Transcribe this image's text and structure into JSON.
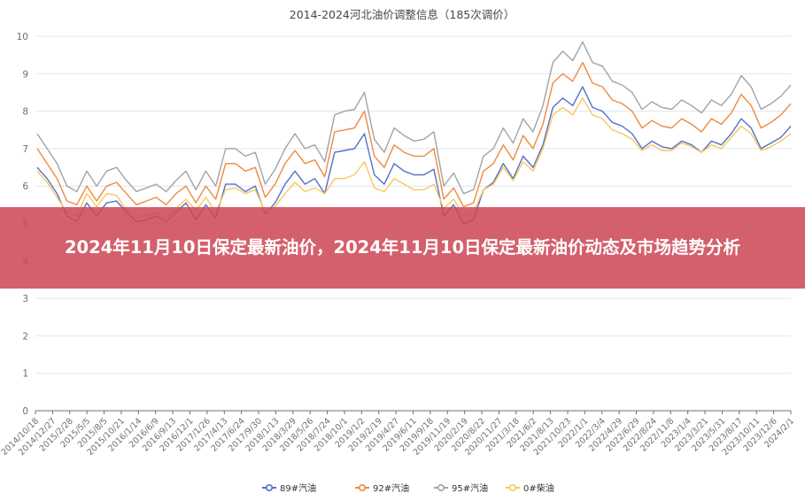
{
  "banner": {
    "headline": "2024年11月10日保定最新油价，2024年11月10日保定最新油价动态及市场趋势分析"
  },
  "chart_data": {
    "type": "line",
    "title": "2014-2024河北油价调整信息（185次调价）",
    "xlabel": "",
    "ylabel": "",
    "ylim": [
      0,
      10
    ],
    "yticks": [
      0,
      1,
      2,
      3,
      4,
      5,
      6,
      7,
      8,
      9,
      10
    ],
    "grid": true,
    "legend_position": "bottom",
    "x_tick_labels": [
      "2014/10/18",
      "2014/12/27",
      "2015/2/28",
      "2015/5/5",
      "2015/8/5",
      "2015/10/21",
      "2016/1/14",
      "2016/6/9",
      "2016/9/13",
      "2016/12/1",
      "2017/1/26",
      "2017/4/13",
      "2017/6/24",
      "2017/9/30",
      "2018/1/13",
      "2018/3/29",
      "2018/5/26",
      "2018/7/24",
      "2018/10/1",
      "2019/1/2",
      "2019/2/19",
      "2019/4/27",
      "2019/6/11",
      "2019/9/18",
      "2019/11/19",
      "2020/2/19",
      "2020/8/22",
      "2020/11/27",
      "2021/3/18",
      "2021/6/2",
      "2021/8/13",
      "2021/10/23",
      "2022/1/1",
      "2022/3/4",
      "2022/4/29",
      "2022/6/29",
      "2022/8/24",
      "2022/11/8",
      "2023/1/4",
      "2023/3/21",
      "2023/5/31",
      "2023/8/17",
      "2023/10/11",
      "2023/12/6",
      "2024/2/1"
    ],
    "series": [
      {
        "name": "89#汽油",
        "color": "#5470c6",
        "values": [
          6.5,
          6.2,
          5.8,
          5.2,
          5.05,
          5.55,
          5.2,
          5.55,
          5.6,
          5.3,
          5.05,
          5.1,
          5.2,
          5.05,
          5.3,
          5.55,
          5.1,
          5.5,
          5.15,
          6.05,
          6.05,
          5.85,
          6.0,
          5.25,
          5.55,
          6.05,
          6.4,
          6.05,
          6.2,
          5.8,
          6.9,
          6.95,
          7.0,
          7.4,
          6.3,
          6.05,
          6.6,
          6.4,
          6.3,
          6.3,
          6.45,
          5.2,
          5.5,
          5.0,
          5.1,
          5.9,
          6.1,
          6.6,
          6.2,
          6.8,
          6.5,
          7.1,
          8.1,
          8.35,
          8.15,
          8.65,
          8.1,
          8.0,
          7.7,
          7.6,
          7.4,
          7.0,
          7.2,
          7.05,
          7.0,
          7.2,
          7.1,
          6.9,
          7.2,
          7.1,
          7.4,
          7.8,
          7.55,
          7.0,
          7.15,
          7.3,
          7.6
        ]
      },
      {
        "name": "92#汽油",
        "color": "#ee8a40",
        "values": [
          7.0,
          6.6,
          6.2,
          5.6,
          5.5,
          6.0,
          5.6,
          6.0,
          6.1,
          5.8,
          5.5,
          5.6,
          5.7,
          5.5,
          5.8,
          6.0,
          5.55,
          6.0,
          5.65,
          6.6,
          6.6,
          6.4,
          6.5,
          5.7,
          6.05,
          6.6,
          6.95,
          6.6,
          6.7,
          6.25,
          7.45,
          7.5,
          7.55,
          8.0,
          6.8,
          6.5,
          7.1,
          6.9,
          6.8,
          6.8,
          7.0,
          5.65,
          5.95,
          5.45,
          5.55,
          6.4,
          6.6,
          7.1,
          6.7,
          7.35,
          7.0,
          7.65,
          8.75,
          9.0,
          8.8,
          9.3,
          8.75,
          8.65,
          8.3,
          8.2,
          8.0,
          7.55,
          7.75,
          7.6,
          7.55,
          7.8,
          7.65,
          7.45,
          7.8,
          7.65,
          7.95,
          8.45,
          8.15,
          7.55,
          7.7,
          7.9,
          8.2
        ]
      },
      {
        "name": "95#汽油",
        "color": "#a3a3a3",
        "values": [
          7.4,
          7.0,
          6.6,
          6.0,
          5.85,
          6.4,
          6.0,
          6.4,
          6.5,
          6.15,
          5.85,
          5.95,
          6.05,
          5.85,
          6.15,
          6.4,
          5.9,
          6.4,
          6.0,
          7.0,
          7.0,
          6.8,
          6.9,
          6.05,
          6.45,
          7.0,
          7.4,
          7.0,
          7.1,
          6.65,
          7.9,
          8.0,
          8.05,
          8.5,
          7.25,
          6.9,
          7.55,
          7.35,
          7.2,
          7.25,
          7.45,
          6.0,
          6.35,
          5.8,
          5.9,
          6.8,
          7.0,
          7.55,
          7.15,
          7.8,
          7.45,
          8.15,
          9.3,
          9.6,
          9.35,
          9.85,
          9.3,
          9.2,
          8.8,
          8.7,
          8.5,
          8.05,
          8.25,
          8.1,
          8.05,
          8.3,
          8.15,
          7.95,
          8.3,
          8.15,
          8.45,
          8.95,
          8.65,
          8.05,
          8.2,
          8.4,
          8.7
        ]
      },
      {
        "name": "0#柴油",
        "color": "#fac858",
        "values": [
          6.4,
          6.1,
          5.7,
          5.3,
          5.2,
          5.8,
          5.45,
          5.8,
          5.75,
          5.35,
          5.2,
          5.2,
          5.3,
          5.15,
          5.4,
          5.65,
          5.35,
          5.7,
          5.3,
          5.9,
          5.95,
          5.8,
          5.9,
          5.3,
          5.45,
          5.8,
          6.1,
          5.85,
          5.95,
          5.8,
          6.2,
          6.2,
          6.3,
          6.65,
          5.95,
          5.85,
          6.2,
          6.05,
          5.9,
          5.9,
          6.05,
          5.4,
          5.65,
          5.2,
          5.3,
          5.9,
          6.05,
          6.5,
          6.15,
          6.65,
          6.4,
          7.0,
          7.9,
          8.1,
          7.9,
          8.35,
          7.9,
          7.8,
          7.5,
          7.4,
          7.25,
          6.95,
          7.1,
          6.95,
          6.95,
          7.15,
          7.05,
          6.9,
          7.1,
          7.0,
          7.3,
          7.6,
          7.4,
          6.95,
          7.05,
          7.2,
          7.4
        ]
      }
    ]
  }
}
